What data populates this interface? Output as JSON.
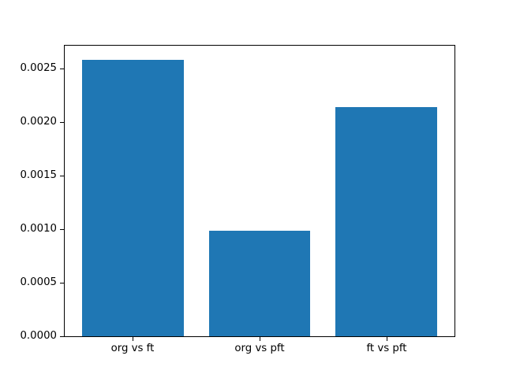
{
  "chart_data": {
    "type": "bar",
    "title": "",
    "xlabel": "",
    "ylabel": "",
    "categories": [
      "org vs ft",
      "org vs pft",
      "ft vs pft"
    ],
    "values": [
      0.0026,
      0.00099,
      0.00215
    ],
    "bar_width": 0.8,
    "xlim": [
      -0.54,
      2.54
    ],
    "ylim": [
      0,
      0.00273
    ],
    "yticks": {
      "values": [
        0.0,
        0.0005,
        0.001,
        0.0015,
        0.002,
        0.0025
      ],
      "labels": [
        "0.0000",
        "0.0005",
        "0.0010",
        "0.0015",
        "0.0020",
        "0.0025"
      ]
    },
    "grid": false,
    "legend": "none",
    "colors": {
      "bar": "#1f77b4",
      "spine": "#000000",
      "text": "#000000",
      "background": "#ffffff"
    }
  }
}
